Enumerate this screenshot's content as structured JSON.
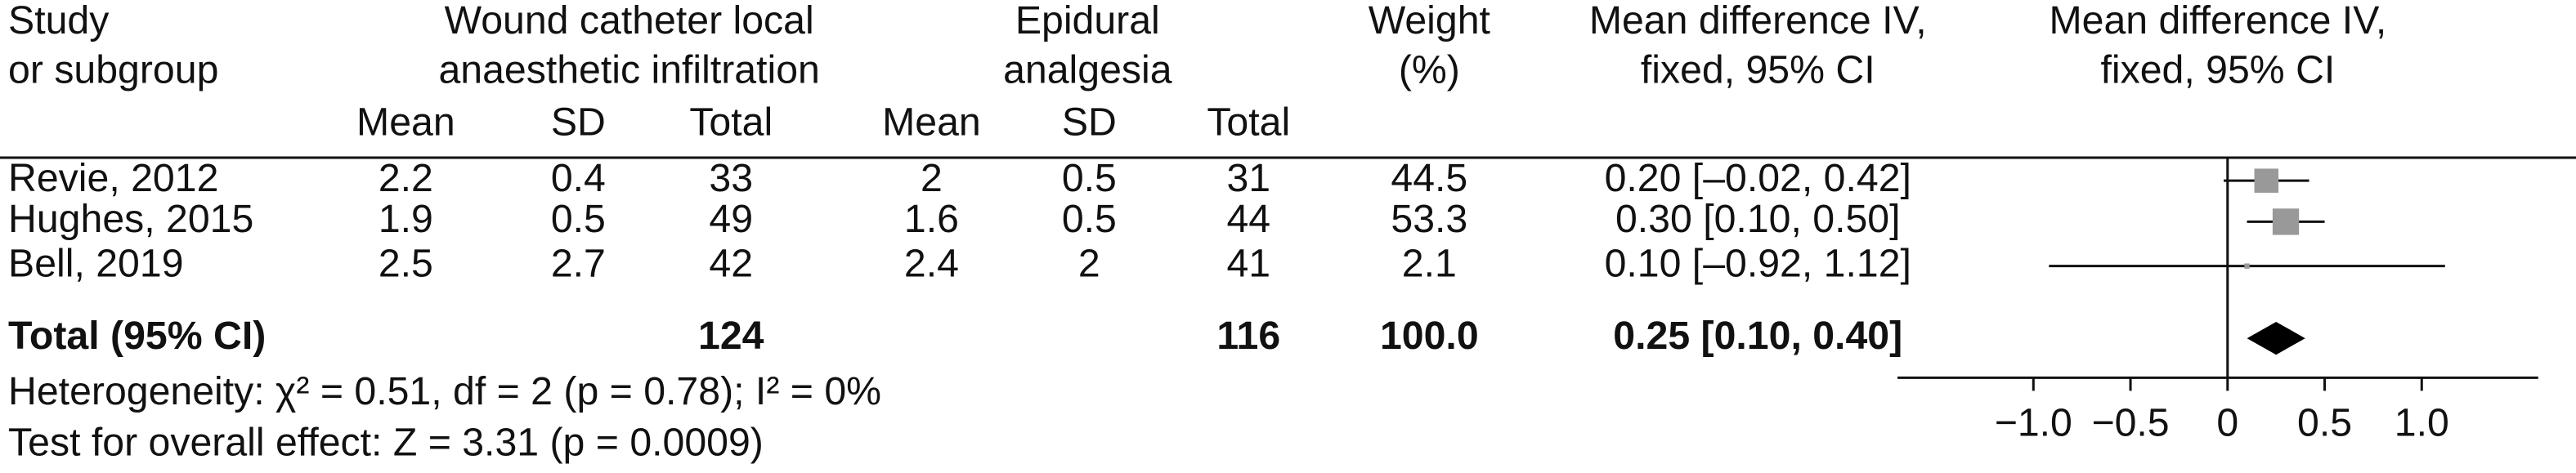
{
  "header": {
    "study": [
      "Study",
      "or subgroup"
    ],
    "experimental": [
      "Wound catheter local",
      "anaesthetic infiltration"
    ],
    "control": [
      "Epidural",
      "analgesia"
    ],
    "weight": [
      "Weight",
      "(%)"
    ],
    "md": [
      "Mean difference IV,",
      "fixed, 95% CI"
    ],
    "plot": [
      "Mean difference IV,",
      "fixed, 95% CI"
    ],
    "sub": [
      "Mean",
      "SD",
      "Total",
      "Mean",
      "SD",
      "Total"
    ]
  },
  "rows": [
    {
      "study": "Revie, 2012",
      "cells": [
        2.2,
        0.4,
        33,
        2,
        0.5,
        31
      ],
      "weight": 44.5,
      "md": 0.2,
      "lower": -0.02,
      "upper": 0.42,
      "ci_label": "0.20 [–0.02, 0.42]"
    },
    {
      "study": "Hughes, 2015",
      "cells": [
        1.9,
        0.5,
        49,
        1.6,
        0.5,
        44
      ],
      "weight": 53.3,
      "md": 0.3,
      "lower": 0.1,
      "upper": 0.5,
      "ci_label": "0.30 [0.10, 0.50]"
    },
    {
      "study": "Bell, 2019",
      "cells": [
        2.5,
        2.7,
        42,
        2.4,
        2,
        41
      ],
      "weight": 2.1,
      "md": 0.1,
      "lower": -0.92,
      "upper": 1.12,
      "ci_label": "0.10 [–0.92, 1.12]"
    }
  ],
  "total": {
    "label": "Total (95% CI)",
    "exp_total": 124,
    "ctl_total": 116,
    "weight": "100.0",
    "md": 0.25,
    "lower": 0.1,
    "upper": 0.4,
    "ci_label": "0.25 [0.10, 0.40]"
  },
  "heterogeneity": "Heterogeneity: χ² = 0.51, df = 2 (p = 0.78); I² = 0%",
  "overall_effect": "Test for overall effect: Z = 3.31 (p = 0.0009)",
  "plot": {
    "xlim": [
      -1.7,
      1.6
    ],
    "xticks": [
      {
        "value": -1,
        "label": "−1.0"
      },
      {
        "value": -0.5,
        "label": "−0.5"
      },
      0,
      0.5,
      {
        "value": 1,
        "label": "1.0"
      }
    ],
    "square_color": "#999999",
    "diamond_color": "#000000"
  }
}
